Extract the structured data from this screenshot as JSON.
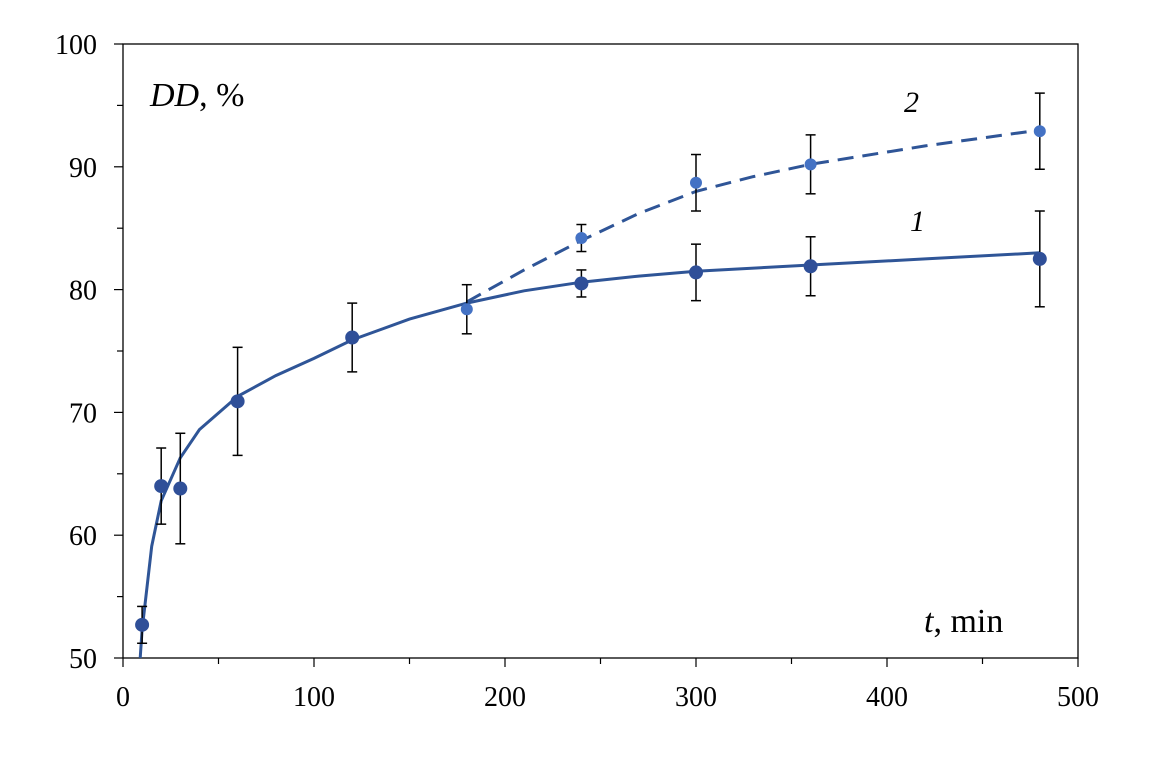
{
  "chart_data": {
    "type": "scatter",
    "xlabel": {
      "var": "t",
      "unit": ", min"
    },
    "ylabel": {
      "var": "DD",
      "unit": ", %"
    },
    "xlim": [
      0,
      500
    ],
    "ylim": [
      50,
      100
    ],
    "x_ticks": [
      0,
      100,
      200,
      300,
      400,
      500
    ],
    "y_ticks": [
      50,
      60,
      70,
      80,
      90,
      100
    ],
    "grid": false,
    "colors": {
      "series1": "#2f4f98",
      "series2": "#4472c4",
      "curve": "#2f5597",
      "axis": "#000000"
    },
    "series": [
      {
        "name": "1",
        "line_style": "solid",
        "points": [
          {
            "x": 10,
            "y": 52.7,
            "err": 1.5
          },
          {
            "x": 20,
            "y": 64.0,
            "err": 3.1
          },
          {
            "x": 30,
            "y": 63.8,
            "err": 4.5
          },
          {
            "x": 60,
            "y": 70.9,
            "err": 4.4
          },
          {
            "x": 120,
            "y": 76.1,
            "err": 2.8
          },
          {
            "x": 240,
            "y": 80.5,
            "err": 1.1
          },
          {
            "x": 300,
            "y": 81.4,
            "err": 2.3
          },
          {
            "x": 360,
            "y": 81.9,
            "err": 2.4
          },
          {
            "x": 480,
            "y": 82.5,
            "err": 3.9
          }
        ],
        "fit": [
          [
            9,
            50
          ],
          [
            10,
            52.3
          ],
          [
            15,
            59.1
          ],
          [
            20,
            62.8
          ],
          [
            30,
            66.3
          ],
          [
            40,
            68.6
          ],
          [
            60,
            71.3
          ],
          [
            80,
            73.0
          ],
          [
            100,
            74.4
          ],
          [
            120,
            75.9
          ],
          [
            150,
            77.6
          ],
          [
            180,
            78.9
          ],
          [
            210,
            79.9
          ],
          [
            240,
            80.6
          ],
          [
            270,
            81.1
          ],
          [
            300,
            81.5
          ],
          [
            360,
            82.0
          ],
          [
            420,
            82.5
          ],
          [
            480,
            83.0
          ]
        ]
      },
      {
        "name": "2",
        "line_style": "dashed",
        "points": [
          {
            "x": 180,
            "y": 78.4,
            "err": 2.0
          },
          {
            "x": 240,
            "y": 84.2,
            "err": 1.1
          },
          {
            "x": 300,
            "y": 88.7,
            "err": 2.3
          },
          {
            "x": 360,
            "y": 90.2,
            "err": 2.4
          },
          {
            "x": 480,
            "y": 92.9,
            "err": 3.1
          }
        ],
        "fit": [
          [
            180,
            79.0
          ],
          [
            210,
            81.6
          ],
          [
            240,
            84.0
          ],
          [
            270,
            86.2
          ],
          [
            300,
            88.0
          ],
          [
            330,
            89.2
          ],
          [
            360,
            90.2
          ],
          [
            420,
            91.7
          ],
          [
            480,
            93.0
          ]
        ]
      }
    ]
  }
}
